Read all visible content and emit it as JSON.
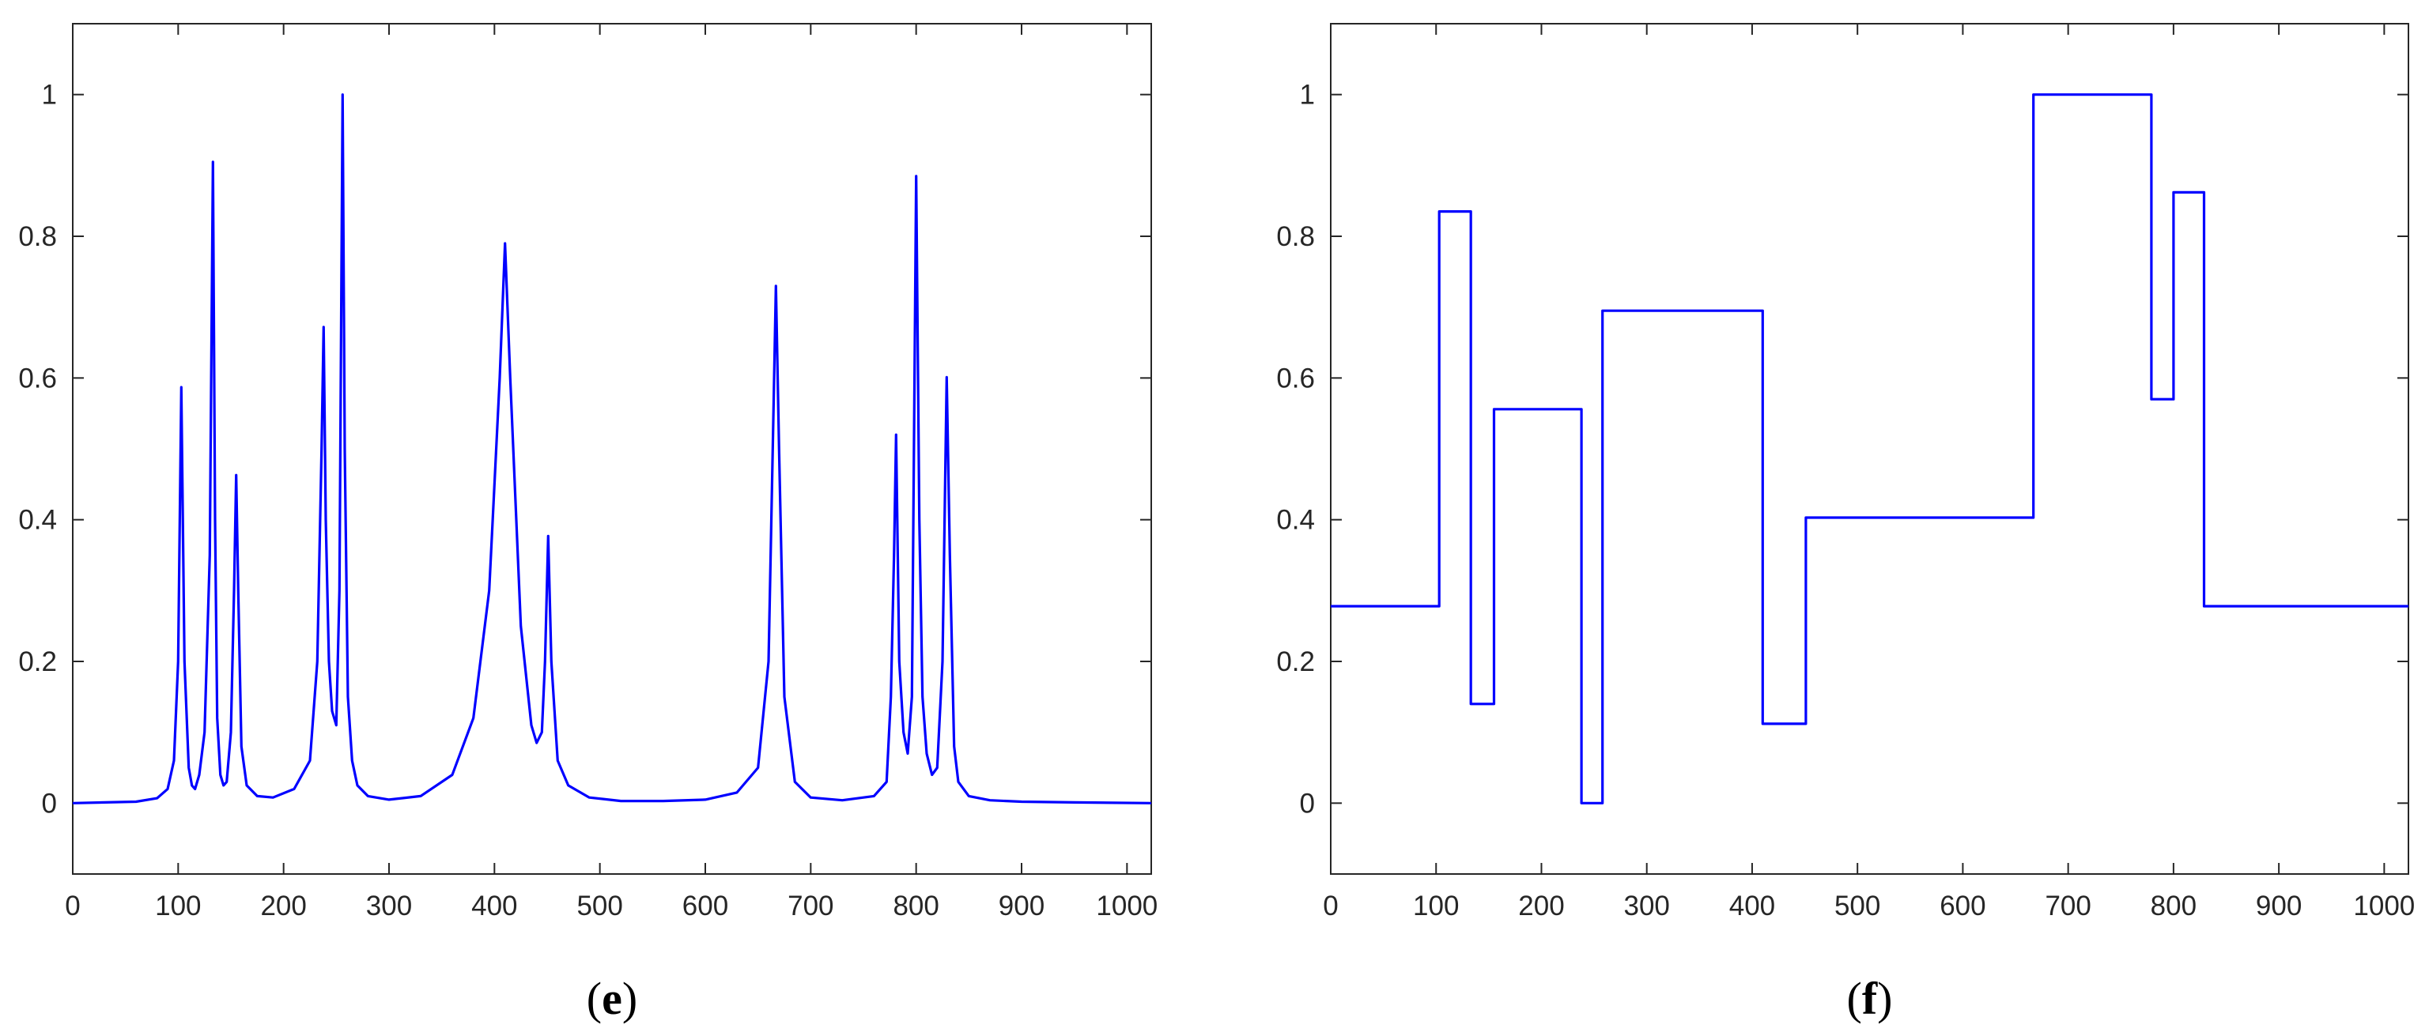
{
  "panels": [
    {
      "caption": "(e)",
      "caption_letter": "e",
      "chart_data": {
        "type": "line",
        "title": "",
        "xlabel": "",
        "ylabel": "",
        "xlim": [
          0,
          1023
        ],
        "ylim": [
          -0.1,
          1.1
        ],
        "xticks": [
          0,
          100,
          200,
          300,
          400,
          500,
          600,
          700,
          800,
          900,
          1000
        ],
        "yticks": [
          0,
          0.2,
          0.4,
          0.6,
          0.8,
          1
        ],
        "ytick_labels": [
          "0",
          "0.2",
          "0.4",
          "0.6",
          "0.8",
          "1"
        ],
        "grid": false,
        "legend": "none",
        "line_color": "#0000ff",
        "series": [
          {
            "x": [
              0,
              60,
              80,
              90,
              96,
              100,
              103,
              106,
              110,
              113,
              116,
              120,
              125,
              130,
              133,
              135,
              137,
              140,
              143,
              146,
              150,
              153,
              155,
              157,
              160,
              165,
              175,
              190,
              210,
              225,
              232,
              236,
              238,
              240,
              243,
              246,
              250,
              253,
              256,
              258,
              261,
              265,
              270,
              280,
              300,
              330,
              360,
              380,
              395,
              405,
              410,
              415,
              425,
              435,
              440,
              445,
              448,
              451,
              454,
              460,
              470,
              490,
              520,
              560,
              600,
              630,
              650,
              660,
              664,
              667,
              670,
              675,
              685,
              700,
              730,
              760,
              772,
              776,
              779,
              781,
              784,
              788,
              792,
              796,
              800,
              803,
              806,
              810,
              815,
              820,
              825,
              829,
              832,
              836,
              840,
              850,
              870,
              900,
              950,
              1023
            ],
            "y": [
              0,
              0.002,
              0.007,
              0.02,
              0.06,
              0.2,
              0.587,
              0.2,
              0.05,
              0.025,
              0.02,
              0.04,
              0.1,
              0.35,
              0.905,
              0.4,
              0.12,
              0.04,
              0.025,
              0.03,
              0.1,
              0.3,
              0.463,
              0.3,
              0.08,
              0.025,
              0.01,
              0.008,
              0.02,
              0.06,
              0.2,
              0.5,
              0.672,
              0.4,
              0.2,
              0.13,
              0.11,
              0.3,
              1.0,
              0.5,
              0.15,
              0.06,
              0.025,
              0.01,
              0.005,
              0.01,
              0.04,
              0.12,
              0.3,
              0.6,
              0.79,
              0.6,
              0.25,
              0.11,
              0.085,
              0.1,
              0.2,
              0.377,
              0.2,
              0.06,
              0.025,
              0.008,
              0.003,
              0.003,
              0.005,
              0.015,
              0.05,
              0.2,
              0.5,
              0.73,
              0.5,
              0.15,
              0.03,
              0.008,
              0.004,
              0.01,
              0.03,
              0.15,
              0.35,
              0.52,
              0.2,
              0.1,
              0.07,
              0.15,
              0.885,
              0.4,
              0.15,
              0.07,
              0.04,
              0.05,
              0.2,
              0.601,
              0.35,
              0.08,
              0.03,
              0.01,
              0.004,
              0.002,
              0.001,
              0
            ]
          }
        ]
      }
    },
    {
      "caption": "(f)",
      "caption_letter": "f",
      "chart_data": {
        "type": "line",
        "title": "",
        "xlabel": "",
        "ylabel": "",
        "xlim": [
          0,
          1023
        ],
        "ylim": [
          -0.1,
          1.1
        ],
        "xticks": [
          0,
          100,
          200,
          300,
          400,
          500,
          600,
          700,
          800,
          900,
          1000
        ],
        "yticks": [
          0,
          0.2,
          0.4,
          0.6,
          0.8,
          1
        ],
        "ytick_labels": [
          "0",
          "0.2",
          "0.4",
          "0.6",
          "0.8",
          "1"
        ],
        "grid": false,
        "legend": "none",
        "line_color": "#0000ff",
        "series": [
          {
            "x": [
              0,
              103,
              103,
              133,
              133,
              155,
              155,
              238,
              238,
              258,
              258,
              410,
              410,
              451,
              451,
              667,
              667,
              779,
              779,
              800,
              800,
              829,
              829,
              1023
            ],
            "y": [
              0.278,
              0.278,
              0.835,
              0.835,
              0.14,
              0.14,
              0.556,
              0.556,
              0,
              0,
              0.695,
              0.695,
              0.112,
              0.112,
              0.403,
              0.403,
              1.0,
              1.0,
              0.57,
              0.57,
              0.862,
              0.862,
              0.278,
              0.278
            ]
          }
        ]
      }
    }
  ]
}
